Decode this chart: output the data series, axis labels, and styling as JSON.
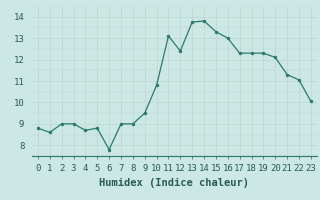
{
  "x": [
    0,
    1,
    2,
    3,
    4,
    5,
    6,
    7,
    8,
    9,
    10,
    11,
    12,
    13,
    14,
    15,
    16,
    17,
    18,
    19,
    20,
    21,
    22,
    23
  ],
  "y": [
    8.8,
    8.6,
    9.0,
    9.0,
    8.7,
    8.8,
    7.8,
    9.0,
    9.0,
    9.5,
    10.8,
    13.1,
    12.4,
    13.75,
    13.8,
    13.3,
    13.0,
    12.3,
    12.3,
    12.3,
    12.1,
    11.3,
    11.05,
    10.05
  ],
  "line_color": "#2a7a6a",
  "marker": "o",
  "marker_size": 2.0,
  "bg_color": "#cce8e4",
  "grid_color": "#c0d8d4",
  "xlabel": "Humidex (Indice chaleur)",
  "ylabel": "",
  "xlim": [
    -0.5,
    23.5
  ],
  "ylim": [
    7.5,
    14.5
  ],
  "yticks": [
    8,
    9,
    10,
    11,
    12,
    13,
    14
  ],
  "xtick_labels": [
    "0",
    "1",
    "2",
    "3",
    "4",
    "5",
    "6",
    "7",
    "8",
    "9",
    "10",
    "11",
    "12",
    "13",
    "14",
    "15",
    "16",
    "17",
    "18",
    "19",
    "20",
    "21",
    "22",
    "23"
  ],
  "xlabel_fontsize": 7.5,
  "tick_fontsize": 6.5
}
